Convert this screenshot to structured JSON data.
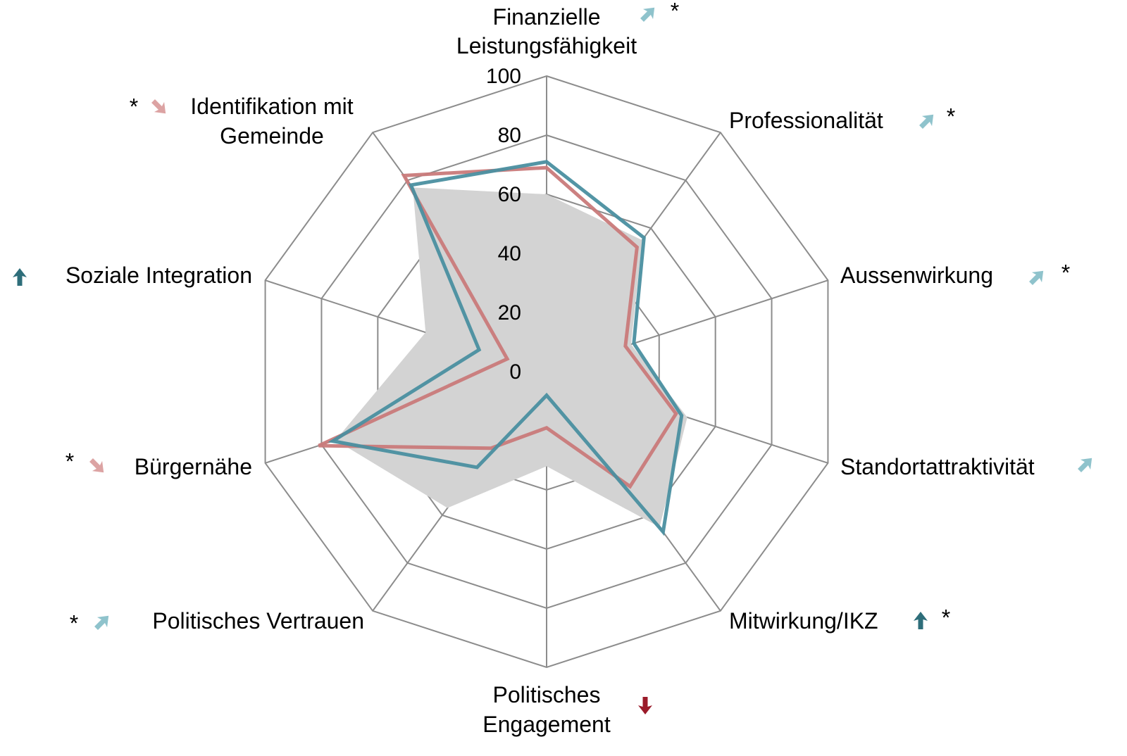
{
  "chart_data": {
    "type": "radar",
    "categories": [
      "Finanzielle\nLeistungsfähigkeit",
      "Professionalität",
      "Aussenwirkung",
      "Standortattraktivität",
      "Mitwirkung/IKZ",
      "Politisches\nEngagement",
      "Politisches Vertrauen",
      "Bürgernähe",
      "Soziale Integration",
      "Identifikation mit\nGemeinde"
    ],
    "series": [
      {
        "color": "#d3d3d3",
        "fill": true,
        "values": [
          60,
          55,
          30,
          50,
          65,
          32,
          57,
          75,
          43,
          77
        ]
      },
      {
        "color": "#c97a7a",
        "fill": false,
        "values": [
          69,
          52,
          28,
          46,
          48,
          19,
          32,
          81,
          14,
          82
        ]
      },
      {
        "color": "#4a8fa0",
        "fill": false,
        "values": [
          71,
          56,
          31,
          48,
          67,
          8,
          40,
          76,
          24,
          78
        ]
      }
    ],
    "ylim": [
      0,
      100
    ],
    "yticks": [
      0,
      20,
      40,
      60,
      80,
      100
    ],
    "grid": true,
    "annotations": [
      {
        "category": 0,
        "text": "*"
      },
      {
        "category": 1,
        "text": "*"
      },
      {
        "category": 2,
        "text": "*"
      },
      {
        "category": 4,
        "text": "*"
      },
      {
        "category": 6,
        "text": "*"
      },
      {
        "category": 7,
        "text": "*"
      },
      {
        "category": 9,
        "text": "*"
      }
    ],
    "arrows": [
      {
        "category": 0,
        "direction": "up-right",
        "color": "#8fc3cc"
      },
      {
        "category": 1,
        "direction": "up-right",
        "color": "#8fc3cc"
      },
      {
        "category": 2,
        "direction": "up-right",
        "color": "#8fc3cc"
      },
      {
        "category": 3,
        "direction": "up-right",
        "color": "#8fc3cc"
      },
      {
        "category": 4,
        "direction": "up",
        "color": "#2e6e7a"
      },
      {
        "category": 5,
        "direction": "down",
        "color": "#9b1b2a"
      },
      {
        "category": 6,
        "direction": "up-right",
        "color": "#8fc3cc"
      },
      {
        "category": 7,
        "direction": "down-right",
        "color": "#dca3a3"
      },
      {
        "category": 8,
        "direction": "up",
        "color": "#2e6e7a"
      },
      {
        "category": 9,
        "direction": "down-right",
        "color": "#dca3a3"
      }
    ]
  }
}
